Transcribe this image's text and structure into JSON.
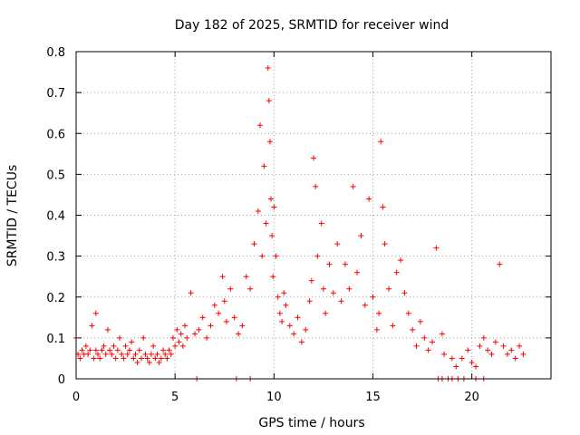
{
  "chart_data": {
    "type": "scatter",
    "title": "Day 182 of 2025, SRMTID for receiver wind",
    "xlabel": "GPS time / hours",
    "ylabel": "SRMTID / TECUs",
    "xlim": [
      0,
      24
    ],
    "ylim": [
      0,
      0.8
    ],
    "xticks": [
      0,
      5,
      10,
      15,
      20
    ],
    "yticks": [
      0,
      0.1,
      0.2,
      0.3,
      0.4,
      0.5,
      0.6,
      0.7,
      0.8
    ],
    "xtick_labels": [
      "0",
      "5",
      "10",
      "15",
      "20"
    ],
    "ytick_labels": [
      "0",
      "0.1",
      "0.2",
      "0.3",
      "0.4",
      "0.5",
      "0.6",
      "0.7",
      "0.8"
    ],
    "grid": true,
    "marker": "+",
    "color": "#ff0000",
    "series": [
      {
        "name": "SRMTID",
        "x": [
          0.0,
          0.1,
          0.2,
          0.3,
          0.4,
          0.5,
          0.6,
          0.7,
          0.8,
          0.9,
          1.0,
          1.0,
          1.1,
          1.2,
          1.3,
          1.4,
          1.5,
          1.6,
          1.7,
          1.8,
          1.9,
          2.0,
          2.1,
          2.2,
          2.3,
          2.4,
          2.5,
          2.6,
          2.7,
          2.8,
          2.9,
          3.0,
          3.1,
          3.2,
          3.3,
          3.4,
          3.5,
          3.6,
          3.7,
          3.8,
          3.9,
          4.0,
          4.1,
          4.2,
          4.3,
          4.4,
          4.5,
          4.6,
          4.7,
          4.8,
          4.9,
          5.0,
          5.1,
          5.2,
          5.3,
          5.4,
          5.5,
          5.6,
          5.8,
          6.0,
          6.2,
          6.4,
          6.6,
          6.8,
          7.0,
          7.2,
          7.4,
          7.5,
          7.6,
          7.8,
          8.0,
          8.2,
          8.4,
          8.6,
          8.8,
          9.0,
          9.2,
          9.3,
          9.4,
          9.5,
          9.6,
          9.7,
          9.75,
          9.8,
          9.85,
          9.9,
          9.95,
          10.0,
          10.1,
          10.2,
          10.3,
          10.4,
          10.5,
          10.6,
          10.8,
          11.0,
          11.2,
          11.4,
          11.6,
          11.8,
          11.9,
          12.0,
          12.1,
          12.2,
          12.4,
          12.5,
          12.6,
          12.8,
          13.0,
          13.2,
          13.4,
          13.6,
          13.8,
          14.0,
          14.2,
          14.4,
          14.6,
          14.8,
          15.0,
          15.2,
          15.3,
          15.4,
          15.5,
          15.6,
          15.8,
          16.0,
          16.2,
          16.4,
          16.6,
          16.8,
          17.0,
          17.2,
          17.4,
          17.6,
          17.8,
          18.0,
          18.2,
          18.5,
          18.6,
          19.0,
          19.2,
          19.5,
          19.8,
          20.0,
          20.2,
          20.4,
          20.6,
          20.8,
          21.0,
          21.2,
          21.4,
          21.6,
          21.8,
          22.0,
          22.2,
          22.4,
          22.6,
          18.3,
          18.5,
          18.8,
          19.0,
          19.3,
          19.6,
          20.2,
          6.1,
          8.1,
          8.8,
          20.6
        ],
        "y": [
          0.1,
          0.06,
          0.05,
          0.07,
          0.06,
          0.08,
          0.06,
          0.07,
          0.13,
          0.05,
          0.07,
          0.16,
          0.06,
          0.05,
          0.07,
          0.08,
          0.06,
          0.12,
          0.07,
          0.06,
          0.08,
          0.05,
          0.07,
          0.1,
          0.06,
          0.05,
          0.08,
          0.06,
          0.07,
          0.09,
          0.05,
          0.06,
          0.04,
          0.07,
          0.05,
          0.1,
          0.06,
          0.05,
          0.04,
          0.06,
          0.08,
          0.05,
          0.06,
          0.04,
          0.05,
          0.07,
          0.06,
          0.05,
          0.07,
          0.06,
          0.1,
          0.08,
          0.12,
          0.09,
          0.11,
          0.08,
          0.13,
          0.1,
          0.21,
          0.11,
          0.12,
          0.15,
          0.1,
          0.13,
          0.18,
          0.16,
          0.25,
          0.19,
          0.14,
          0.22,
          0.15,
          0.11,
          0.13,
          0.25,
          0.22,
          0.33,
          0.41,
          0.62,
          0.3,
          0.52,
          0.38,
          0.76,
          0.68,
          0.58,
          0.44,
          0.35,
          0.25,
          0.42,
          0.3,
          0.2,
          0.16,
          0.14,
          0.21,
          0.18,
          0.13,
          0.11,
          0.15,
          0.09,
          0.12,
          0.19,
          0.24,
          0.54,
          0.47,
          0.3,
          0.38,
          0.22,
          0.16,
          0.28,
          0.21,
          0.33,
          0.19,
          0.28,
          0.22,
          0.47,
          0.26,
          0.35,
          0.18,
          0.44,
          0.2,
          0.12,
          0.16,
          0.58,
          0.42,
          0.33,
          0.22,
          0.13,
          0.26,
          0.29,
          0.21,
          0.16,
          0.12,
          0.08,
          0.14,
          0.1,
          0.07,
          0.09,
          0.32,
          0.11,
          0.06,
          0.05,
          0.03,
          0.05,
          0.07,
          0.04,
          0.03,
          0.08,
          0.1,
          0.07,
          0.06,
          0.09,
          0.28,
          0.08,
          0.06,
          0.07,
          0.05,
          0.08,
          0.06,
          0.0,
          0.0,
          0.0,
          0.0,
          0.0,
          0.0,
          0.0,
          0.0,
          0.0,
          0.0,
          0.0
        ]
      }
    ]
  }
}
